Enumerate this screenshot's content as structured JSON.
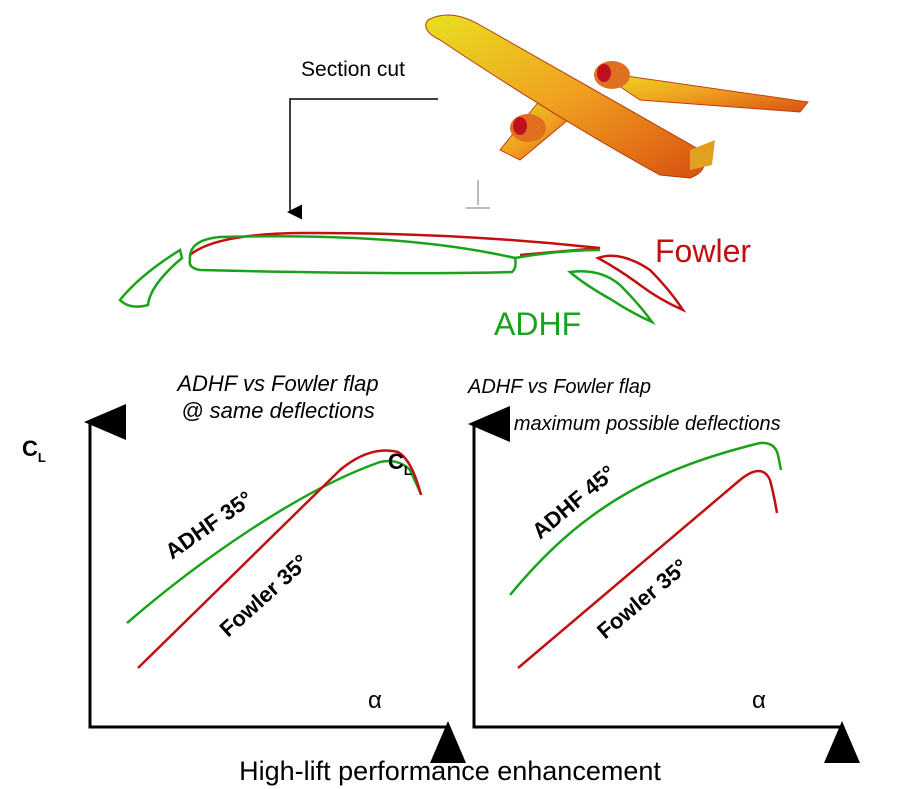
{
  "top": {
    "section_cut_label": "Section cut",
    "fowler_label": "Fowler",
    "adhf_label": "ADHF"
  },
  "panels": [
    {
      "title_line1": "ADHF vs Fowler flap",
      "title_line2": "@ same deflections",
      "y_axis_label": "C",
      "y_axis_subscript": "L",
      "peak_label": "C",
      "peak_subscript": "L",
      "curve_labels": [
        "ADHF 35°",
        "Fowler 35°"
      ],
      "x_axis_label": "α"
    },
    {
      "title_line1": "ADHF vs Fowler flap",
      "title_line2": "@ maximum possible deflections",
      "curve_labels": [
        "ADHF 45°",
        "Fowler 35°"
      ],
      "x_axis_label": "α"
    }
  ],
  "caption": "High-lift performance enhancement"
}
